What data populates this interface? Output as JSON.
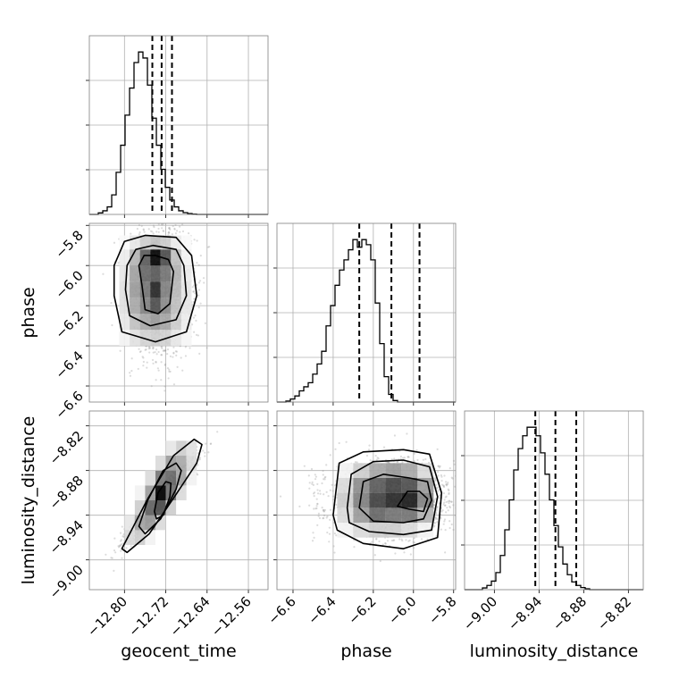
{
  "figure": {
    "background": "#ffffff",
    "grid_color": "#b0b0b0",
    "ink_color": "#000000",
    "density_dark": "#000000",
    "density_light": "#ffffff",
    "point_color": "#9a9a9a"
  },
  "chart_data": {
    "type": "corner",
    "parameters": [
      "geocent_time",
      "phase",
      "luminosity_distance"
    ],
    "axis_labels": {
      "geocent_time": "geocent_time",
      "phase": "phase",
      "luminosity_distance": "luminosity_distance"
    },
    "ranges": {
      "geocent_time": [
        -12.868,
        -12.522
      ],
      "phase": [
        -6.68,
        -5.79
      ],
      "luminosity_distance": [
        -9.04,
        -8.8
      ]
    },
    "ticks": {
      "geocent_time": [
        -12.8,
        -12.72,
        -12.64,
        -12.56
      ],
      "phase": [
        -6.6,
        -6.4,
        -6.2,
        -6.0,
        -5.8
      ],
      "luminosity_distance": [
        -9.0,
        -8.94,
        -8.88,
        -8.82
      ]
    },
    "tick_labels": {
      "geocent_time": [
        "−12.80",
        "−12.72",
        "−12.64",
        "−12.56"
      ],
      "phase": [
        "−6.6",
        "−6.4",
        "−6.2",
        "−6.0",
        "−5.8"
      ],
      "luminosity_distance": [
        "−9.00",
        "−8.94",
        "−8.88",
        "−8.82"
      ]
    },
    "quantiles": {
      "geocent_time": [
        -12.746,
        -12.728,
        -12.708
      ],
      "phase": [
        -6.27,
        -6.11,
        -5.97
      ],
      "luminosity_distance": [
        -8.945,
        -8.918,
        -8.89
      ]
    },
    "histograms": {
      "geocent_time": {
        "edges": [
          -12.868,
          -12.8593,
          -12.8507,
          -12.842,
          -12.8334,
          -12.8247,
          -12.8161,
          -12.8074,
          -12.7988,
          -12.7901,
          -12.7815,
          -12.7728,
          -12.7642,
          -12.7555,
          -12.7469,
          -12.7382,
          -12.7296,
          -12.7209,
          -12.7123,
          -12.7036,
          -12.695,
          -12.6863,
          -12.6777,
          -12.669,
          -12.6604,
          -12.6517,
          -12.6431,
          -12.6344,
          -12.6258,
          -12.6171,
          -12.6085,
          -12.5998,
          -12.5912,
          -12.5825,
          -12.5739,
          -12.5652,
          -12.5566,
          -12.5479,
          -12.5393,
          -12.5306,
          -12.522
        ],
        "counts": [
          0,
          0,
          5,
          12,
          25,
          65,
          140,
          230,
          330,
          420,
          505,
          540,
          520,
          430,
          320,
          230,
          150,
          90,
          48,
          25,
          12,
          6,
          3,
          1,
          0,
          0,
          0,
          0,
          0,
          0,
          0,
          0,
          0,
          0,
          0,
          0,
          0,
          0,
          0,
          0
        ]
      },
      "phase": {
        "edges": [
          -6.68,
          -6.6578,
          -6.6355,
          -6.6133,
          -6.591,
          -6.5688,
          -6.5465,
          -6.5243,
          -6.502,
          -6.4798,
          -6.4575,
          -6.4353,
          -6.413,
          -6.3908,
          -6.3685,
          -6.3463,
          -6.324,
          -6.3018,
          -6.2795,
          -6.2573,
          -6.235,
          -6.2128,
          -6.1905,
          -6.1683,
          -6.146,
          -6.1238,
          -6.1015,
          -6.0793,
          -6.057,
          -6.0348,
          -6.0125,
          -5.9903,
          -5.968,
          -5.9458,
          -5.9235,
          -5.9013,
          -5.879,
          -5.8568,
          -5.8345,
          -5.8123,
          -5.79
        ],
        "counts": [
          0,
          0,
          2,
          6,
          12,
          22,
          30,
          38,
          55,
          75,
          100,
          150,
          190,
          230,
          260,
          280,
          300,
          320,
          305,
          320,
          310,
          280,
          195,
          115,
          50,
          15,
          3,
          0,
          0,
          0,
          0,
          0,
          0,
          0,
          0,
          0,
          0,
          0,
          0,
          0
        ]
      },
      "luminosity_distance": {
        "edges": [
          -9.04,
          -9.034,
          -9.028,
          -9.022,
          -9.016,
          -9.01,
          -9.004,
          -8.998,
          -8.992,
          -8.986,
          -8.98,
          -8.974,
          -8.968,
          -8.962,
          -8.956,
          -8.95,
          -8.944,
          -8.938,
          -8.932,
          -8.926,
          -8.92,
          -8.914,
          -8.908,
          -8.902,
          -8.896,
          -8.89,
          -8.884,
          -8.878,
          -8.872,
          -8.866,
          -8.86,
          -8.854,
          -8.848,
          -8.842,
          -8.836,
          -8.83,
          -8.824,
          -8.818,
          -8.812,
          -8.806,
          -8.8
        ],
        "counts": [
          0,
          0,
          0,
          0,
          4,
          10,
          20,
          40,
          80,
          140,
          210,
          280,
          330,
          360,
          380,
          380,
          360,
          320,
          270,
          210,
          150,
          100,
          60,
          35,
          18,
          10,
          5,
          2,
          0,
          0,
          0,
          0,
          0,
          0,
          0,
          0,
          0,
          0,
          0,
          0
        ]
      }
    },
    "pairs": [
      {
        "x": "geocent_time",
        "y": "phase",
        "scatter_center": [
          -12.73,
          -6.12
        ],
        "scatter_sigma": [
          0.03,
          0.15
        ],
        "correlation": 0,
        "density_grid": {
          "x_edges": [
            -12.81,
            -12.79,
            -12.77,
            -12.75,
            -12.73,
            -12.71,
            -12.69,
            -12.67
          ],
          "y_edges": [
            -6.4,
            -6.32,
            -6.24,
            -6.16,
            -6.08,
            -6.0,
            -5.92,
            -5.85
          ],
          "values": [
            [
              0.05,
              0.12,
              0.18,
              0.2,
              0.18,
              0.1,
              0.04
            ],
            [
              0.1,
              0.25,
              0.35,
              0.4,
              0.35,
              0.2,
              0.08
            ],
            [
              0.12,
              0.35,
              0.5,
              0.7,
              0.45,
              0.25,
              0.1
            ],
            [
              0.12,
              0.4,
              0.55,
              0.85,
              0.5,
              0.28,
              0.1
            ],
            [
              0.1,
              0.38,
              0.6,
              0.65,
              0.55,
              0.3,
              0.08
            ],
            [
              0.08,
              0.3,
              0.65,
              1.0,
              0.7,
              0.25,
              0.05
            ],
            [
              0.02,
              0.1,
              0.2,
              0.25,
              0.2,
              0.08,
              0.02
            ]
          ]
        },
        "contours": [
          [
            [
              -12.772,
              -6.0
            ],
            [
              -12.762,
              -5.95
            ],
            [
              -12.74,
              -5.95
            ],
            [
              -12.715,
              -5.97
            ],
            [
              -12.705,
              -6.03
            ],
            [
              -12.712,
              -6.19
            ],
            [
              -12.735,
              -6.24
            ],
            [
              -12.76,
              -6.22
            ],
            [
              -12.766,
              -6.1
            ]
          ],
          [
            [
              -12.795,
              -6.0
            ],
            [
              -12.778,
              -5.92
            ],
            [
              -12.745,
              -5.9
            ],
            [
              -12.7,
              -5.92
            ],
            [
              -12.685,
              -6.0
            ],
            [
              -12.68,
              -6.15
            ],
            [
              -12.7,
              -6.27
            ],
            [
              -12.75,
              -6.3
            ],
            [
              -12.79,
              -6.25
            ],
            [
              -12.798,
              -6.12
            ]
          ],
          [
            [
              -12.82,
              -6.0
            ],
            [
              -12.8,
              -5.88
            ],
            [
              -12.76,
              -5.85
            ],
            [
              -12.7,
              -5.86
            ],
            [
              -12.67,
              -5.95
            ],
            [
              -12.66,
              -6.15
            ],
            [
              -12.68,
              -6.33
            ],
            [
              -12.74,
              -6.38
            ],
            [
              -12.805,
              -6.33
            ],
            [
              -12.82,
              -6.15
            ]
          ]
        ]
      },
      {
        "x": "geocent_time",
        "y": "luminosity_distance",
        "scatter_center": [
          -12.728,
          -8.918
        ],
        "scatter_sigma": [
          0.03,
          0.025
        ],
        "correlation": 0.93,
        "density_grid": {
          "x_edges": [
            -12.8,
            -12.78,
            -12.76,
            -12.74,
            -12.72,
            -12.7,
            -12.68,
            -12.66
          ],
          "y_edges": [
            -8.98,
            -8.96,
            -8.94,
            -8.92,
            -8.9,
            -8.88,
            -8.86,
            -8.84
          ],
          "values": [
            [
              0.15,
              0.2,
              0.05,
              0.0,
              0.0,
              0.0,
              0.0
            ],
            [
              0.1,
              0.35,
              0.4,
              0.15,
              0.0,
              0.0,
              0.0
            ],
            [
              0.0,
              0.2,
              0.6,
              0.7,
              0.2,
              0.0,
              0.0
            ],
            [
              0.0,
              0.05,
              0.4,
              1.0,
              0.55,
              0.15,
              0.0
            ],
            [
              0.0,
              0.0,
              0.15,
              0.55,
              0.6,
              0.35,
              0.05
            ],
            [
              0.0,
              0.0,
              0.0,
              0.15,
              0.4,
              0.35,
              0.15
            ],
            [
              0.0,
              0.0,
              0.0,
              0.0,
              0.1,
              0.2,
              0.12
            ]
          ]
        },
        "contours": [
          [
            [
              -12.742,
              -8.935
            ],
            [
              -12.735,
              -8.91
            ],
            [
              -12.72,
              -8.895
            ],
            [
              -12.71,
              -8.897
            ],
            [
              -12.712,
              -8.915
            ],
            [
              -12.725,
              -8.94
            ],
            [
              -12.738,
              -8.945
            ]
          ],
          [
            [
              -12.772,
              -8.955
            ],
            [
              -12.755,
              -8.92
            ],
            [
              -12.725,
              -8.88
            ],
            [
              -12.7,
              -8.87
            ],
            [
              -12.69,
              -8.88
            ],
            [
              -12.7,
              -8.905
            ],
            [
              -12.73,
              -8.945
            ],
            [
              -12.76,
              -8.965
            ]
          ],
          [
            [
              -12.805,
              -8.985
            ],
            [
              -12.79,
              -8.965
            ],
            [
              -12.755,
              -8.918
            ],
            [
              -12.705,
              -8.86
            ],
            [
              -12.665,
              -8.838
            ],
            [
              -12.65,
              -8.845
            ],
            [
              -12.66,
              -8.87
            ],
            [
              -12.7,
              -8.912
            ],
            [
              -12.752,
              -8.965
            ],
            [
              -12.795,
              -8.99
            ]
          ]
        ]
      },
      {
        "x": "phase",
        "y": "luminosity_distance",
        "scatter_center": [
          -6.12,
          -8.918
        ],
        "scatter_sigma": [
          0.15,
          0.025
        ],
        "correlation": 0,
        "density_grid": {
          "x_edges": [
            -6.38,
            -6.3,
            -6.22,
            -6.14,
            -6.06,
            -5.98,
            -5.9
          ],
          "y_edges": [
            -8.97,
            -8.95,
            -8.93,
            -8.91,
            -8.89,
            -8.87
          ],
          "values": [
            [
              0.05,
              0.15,
              0.2,
              0.2,
              0.15,
              0.05
            ],
            [
              0.15,
              0.4,
              0.6,
              0.55,
              0.55,
              0.3
            ],
            [
              0.2,
              0.5,
              0.75,
              0.85,
              0.9,
              0.5
            ],
            [
              0.15,
              0.45,
              0.65,
              0.75,
              0.7,
              0.4
            ],
            [
              0.05,
              0.2,
              0.35,
              0.4,
              0.35,
              0.15
            ]
          ]
        },
        "contours": [
          [
            [
              -6.08,
              -8.928
            ],
            [
              -6.03,
              -8.908
            ],
            [
              -5.97,
              -8.908
            ],
            [
              -5.93,
              -8.918
            ],
            [
              -5.95,
              -8.935
            ],
            [
              -6.02,
              -8.932
            ]
          ],
          [
            [
              -6.27,
              -8.93
            ],
            [
              -6.25,
              -8.895
            ],
            [
              -6.15,
              -8.885
            ],
            [
              -6.02,
              -8.89
            ],
            [
              -5.93,
              -8.895
            ],
            [
              -5.91,
              -8.92
            ],
            [
              -5.95,
              -8.945
            ],
            [
              -6.05,
              -8.95
            ],
            [
              -6.2,
              -8.948
            ]
          ],
          [
            [
              -6.33,
              -8.93
            ],
            [
              -6.31,
              -8.885
            ],
            [
              -6.2,
              -8.868
            ],
            [
              -6.05,
              -8.866
            ],
            [
              -5.92,
              -8.875
            ],
            [
              -5.88,
              -8.915
            ],
            [
              -5.91,
              -8.96
            ],
            [
              -6.05,
              -8.966
            ],
            [
              -6.22,
              -8.962
            ],
            [
              -6.32,
              -8.95
            ]
          ],
          [
            [
              -6.4,
              -8.94
            ],
            [
              -6.37,
              -8.87
            ],
            [
              -6.25,
              -8.855
            ],
            [
              -6.05,
              -8.852
            ],
            [
              -5.92,
              -8.858
            ],
            [
              -5.86,
              -8.91
            ],
            [
              -5.88,
              -8.97
            ],
            [
              -6.05,
              -8.985
            ],
            [
              -6.25,
              -8.978
            ],
            [
              -6.38,
              -8.96
            ]
          ]
        ]
      }
    ]
  }
}
